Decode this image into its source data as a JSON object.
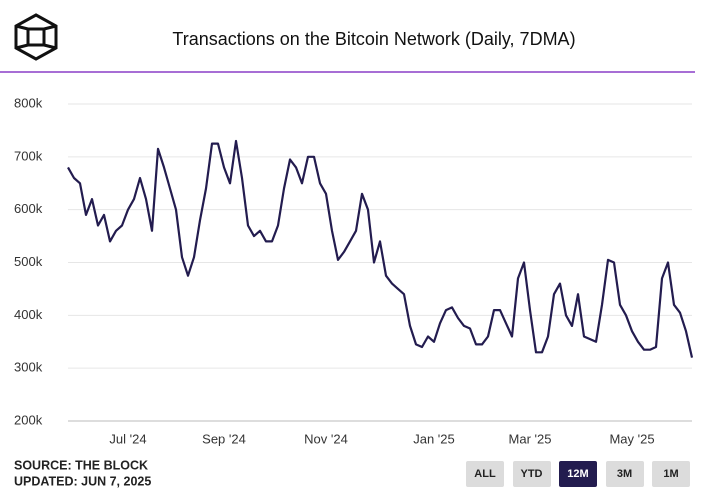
{
  "chart_data": {
    "type": "line",
    "title": "Transactions on the Bitcoin Network (Daily, 7DMA)",
    "categories": [
      null,
      null,
      null,
      null,
      null,
      null,
      null,
      null,
      null,
      null,
      "Jul '24",
      null,
      null,
      null,
      null,
      null,
      null,
      null,
      null,
      null,
      null,
      null,
      null,
      null,
      null,
      null,
      "Sep '24",
      null,
      null,
      null,
      null,
      null,
      null,
      null,
      null,
      null,
      null,
      null,
      null,
      null,
      null,
      null,
      null,
      "Nov '24",
      null,
      null,
      null,
      null,
      null,
      null,
      null,
      null,
      null,
      null,
      null,
      null,
      null,
      null,
      null,
      null,
      null,
      "Jan '25",
      null,
      null,
      null,
      null,
      null,
      null,
      null,
      null,
      null,
      null,
      null,
      null,
      null,
      null,
      null,
      "Mar '25",
      null,
      null,
      null,
      null,
      null,
      null,
      null,
      null,
      null,
      null,
      null,
      null,
      null,
      null,
      null,
      null,
      "May '25",
      null,
      null,
      null,
      null,
      null,
      null,
      null,
      null,
      null,
      null
    ],
    "series": [
      {
        "name": "Transactions",
        "color": "#231c4f",
        "values": [
          680000,
          660000,
          650000,
          590000,
          620000,
          570000,
          590000,
          540000,
          560000,
          570000,
          600000,
          620000,
          660000,
          620000,
          560000,
          715000,
          680000,
          640000,
          600000,
          510000,
          475000,
          510000,
          580000,
          640000,
          725000,
          725000,
          680000,
          650000,
          730000,
          660000,
          570000,
          550000,
          560000,
          540000,
          540000,
          570000,
          640000,
          695000,
          680000,
          650000,
          700000,
          700000,
          650000,
          630000,
          560000,
          505000,
          520000,
          540000,
          560000,
          630000,
          600000,
          500000,
          540000,
          475000,
          460000,
          450000,
          440000,
          380000,
          345000,
          340000,
          360000,
          350000,
          385000,
          410000,
          415000,
          395000,
          380000,
          375000,
          345000,
          345000,
          360000,
          410000,
          410000,
          385000,
          360000,
          470000,
          500000,
          410000,
          330000,
          330000,
          360000,
          440000,
          460000,
          400000,
          380000,
          440000,
          360000,
          355000,
          350000,
          420000,
          505000,
          500000,
          420000,
          400000,
          370000,
          350000,
          335000,
          335000,
          340000,
          470000,
          500000,
          420000,
          405000,
          370000,
          320000
        ]
      }
    ],
    "ylim": [
      200000,
      800000
    ],
    "yticks": [
      {
        "value": 200000,
        "label": "200k"
      },
      {
        "value": 300000,
        "label": "300k"
      },
      {
        "value": 400000,
        "label": "400k"
      },
      {
        "value": 500000,
        "label": "500k"
      },
      {
        "value": 600000,
        "label": "600k"
      },
      {
        "value": 700000,
        "label": "700k"
      },
      {
        "value": 800000,
        "label": "800k"
      }
    ],
    "grid": true,
    "source": "SOURCE: THE BLOCK",
    "updated": "UPDATED: JUN 7, 2025"
  },
  "controls": {
    "buttons": [
      "ALL",
      "YTD",
      "12M",
      "3M",
      "1M"
    ],
    "selected": 2
  }
}
